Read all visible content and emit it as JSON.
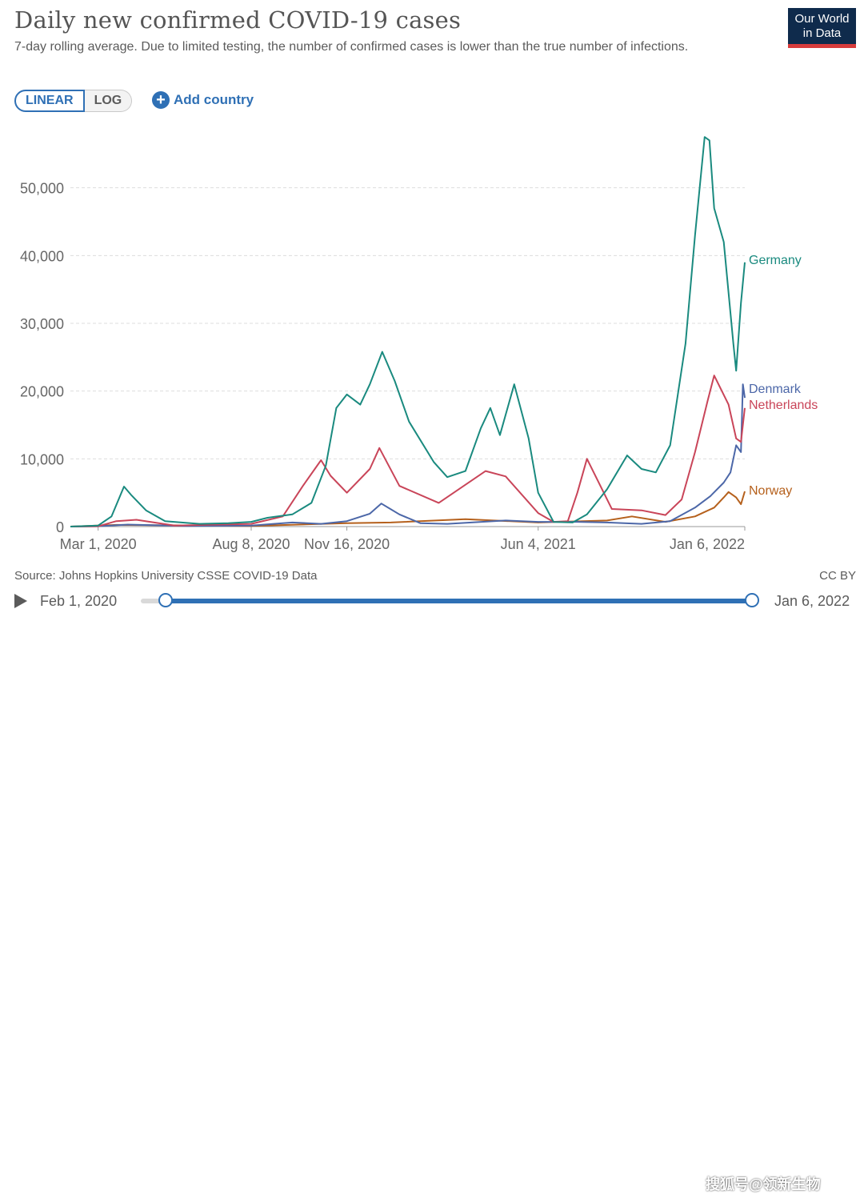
{
  "header": {
    "title": "Daily new confirmed COVID-19 cases",
    "subtitle": "7-day rolling average. Due to limited testing, the number of confirmed cases is lower than the true number of infections.",
    "logo_line1": "Our World",
    "logo_line2": "in Data"
  },
  "controls": {
    "linear_label": "LINEAR",
    "log_label": "LOG",
    "add_country_label": "Add country",
    "active_scale": "linear"
  },
  "footer": {
    "source": "Source: Johns Hopkins University CSSE COVID-19 Data",
    "license": "CC BY",
    "timeline_start": "Feb 1, 2020",
    "timeline_end": "Jan 6, 2022",
    "watermark": "搜狐号@领新生物"
  },
  "colors": {
    "Germany": "#1a8a7f",
    "Denmark": "#4c67a8",
    "Netherlands": "#c94559",
    "Norway": "#b5601c",
    "grid": "#dddddd",
    "axis_text": "#666666"
  },
  "chart_data": {
    "type": "line",
    "x_axis": {
      "type": "date",
      "range": [
        "2020-02-01",
        "2022-01-06"
      ],
      "tick_labels": [
        "Mar 1, 2020",
        "Aug 8, 2020",
        "Nov 16, 2020",
        "Jun 4, 2021",
        "Jan 6, 2022"
      ],
      "tick_dates": [
        "2020-03-01",
        "2020-08-08",
        "2020-11-16",
        "2021-06-04",
        "2022-01-06"
      ]
    },
    "y_axis": {
      "range": [
        0,
        60000
      ],
      "ticks": [
        0,
        10000,
        20000,
        30000,
        40000,
        50000
      ],
      "tick_labels": [
        "0",
        "10,000",
        "20,000",
        "30,000",
        "40,000",
        "50,000"
      ]
    },
    "grid": true,
    "legend": "inline-right",
    "series": [
      {
        "name": "Germany",
        "x": [
          "2020-02-01",
          "2020-03-01",
          "2020-03-15",
          "2020-03-28",
          "2020-04-05",
          "2020-04-20",
          "2020-05-10",
          "2020-06-15",
          "2020-07-15",
          "2020-08-08",
          "2020-08-25",
          "2020-09-20",
          "2020-10-10",
          "2020-10-25",
          "2020-11-05",
          "2020-11-16",
          "2020-11-30",
          "2020-12-10",
          "2020-12-23",
          "2021-01-05",
          "2021-01-20",
          "2021-02-15",
          "2021-03-01",
          "2021-03-20",
          "2021-04-05",
          "2021-04-15",
          "2021-04-25",
          "2021-05-10",
          "2021-05-25",
          "2021-06-04",
          "2021-06-20",
          "2021-07-10",
          "2021-07-25",
          "2021-08-15",
          "2021-09-05",
          "2021-09-20",
          "2021-10-05",
          "2021-10-20",
          "2021-11-05",
          "2021-11-15",
          "2021-11-25",
          "2021-11-30",
          "2021-12-05",
          "2021-12-15",
          "2021-12-25",
          "2021-12-28",
          "2022-01-02",
          "2022-01-06"
        ],
        "y": [
          0,
          150,
          1500,
          5900,
          4600,
          2400,
          800,
          400,
          500,
          700,
          1300,
          1800,
          3500,
          9000,
          17500,
          19500,
          18000,
          21000,
          25800,
          21500,
          15500,
          9500,
          7300,
          8200,
          14500,
          17500,
          13500,
          21000,
          13000,
          5000,
          700,
          600,
          1800,
          5500,
          10500,
          8500,
          8000,
          12000,
          27000,
          43000,
          57500,
          57000,
          47000,
          42000,
          27000,
          23000,
          33000,
          39000
        ]
      },
      {
        "name": "Denmark",
        "x": [
          "2020-02-01",
          "2020-03-01",
          "2020-04-01",
          "2020-06-01",
          "2020-08-08",
          "2020-09-20",
          "2020-10-20",
          "2020-11-16",
          "2020-12-10",
          "2020-12-22",
          "2021-01-10",
          "2021-02-01",
          "2021-03-01",
          "2021-05-01",
          "2021-06-04",
          "2021-07-15",
          "2021-08-15",
          "2021-09-20",
          "2021-10-20",
          "2021-11-15",
          "2021-12-01",
          "2021-12-15",
          "2021-12-22",
          "2021-12-28",
          "2022-01-02",
          "2022-01-04",
          "2022-01-06"
        ],
        "y": [
          0,
          50,
          300,
          80,
          150,
          600,
          400,
          800,
          1900,
          3400,
          1800,
          500,
          400,
          900,
          700,
          700,
          600,
          400,
          800,
          2800,
          4500,
          6500,
          8000,
          12000,
          11000,
          21000,
          19000
        ]
      },
      {
        "name": "Netherlands",
        "x": [
          "2020-02-01",
          "2020-03-01",
          "2020-03-20",
          "2020-04-10",
          "2020-05-20",
          "2020-08-08",
          "2020-09-10",
          "2020-10-01",
          "2020-10-20",
          "2020-10-30",
          "2020-11-16",
          "2020-12-10",
          "2020-12-20",
          "2021-01-10",
          "2021-02-20",
          "2021-04-10",
          "2021-05-01",
          "2021-06-04",
          "2021-06-20",
          "2021-07-05",
          "2021-07-15",
          "2021-07-25",
          "2021-08-20",
          "2021-09-20",
          "2021-10-15",
          "2021-11-01",
          "2021-11-15",
          "2021-11-28",
          "2021-12-05",
          "2021-12-20",
          "2021-12-28",
          "2022-01-02",
          "2022-01-06"
        ],
        "y": [
          0,
          50,
          800,
          1000,
          150,
          400,
          1500,
          6000,
          9800,
          7500,
          5000,
          8500,
          11600,
          6000,
          3500,
          8200,
          7400,
          2000,
          700,
          800,
          5000,
          10000,
          2600,
          2400,
          1700,
          4000,
          11000,
          18500,
          22300,
          18000,
          13000,
          12500,
          17500
        ]
      },
      {
        "name": "Norway",
        "x": [
          "2020-02-01",
          "2020-03-20",
          "2020-08-08",
          "2020-11-16",
          "2021-01-01",
          "2021-03-20",
          "2021-06-04",
          "2021-08-15",
          "2021-09-10",
          "2021-10-15",
          "2021-11-15",
          "2021-12-05",
          "2021-12-15",
          "2021-12-20",
          "2021-12-28",
          "2022-01-02",
          "2022-01-06"
        ],
        "y": [
          0,
          250,
          100,
          500,
          600,
          1100,
          600,
          900,
          1500,
          700,
          1500,
          2800,
          4300,
          5100,
          4300,
          3300,
          5200
        ]
      }
    ]
  }
}
